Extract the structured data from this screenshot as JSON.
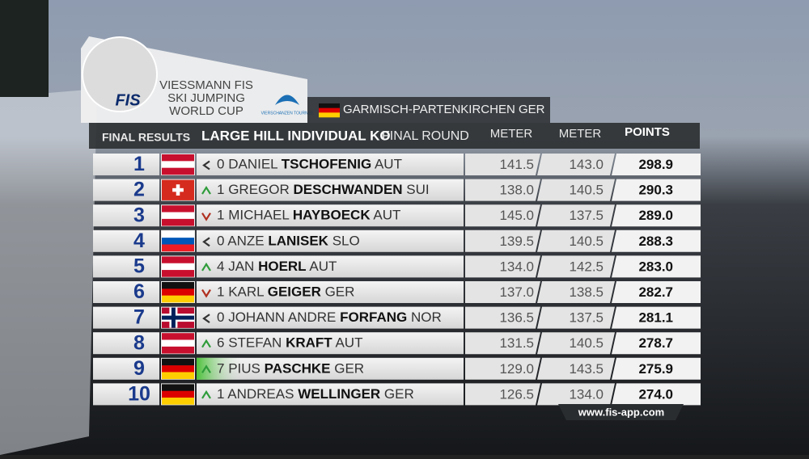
{
  "header": {
    "fis_logo": "FIS",
    "title_lines": [
      "VIESSMANN FIS",
      "SKI JUMPING",
      "WORLD CUP"
    ],
    "tour_logo": "VIERSCHANZEN TOURNEE",
    "venue": "GARMISCH-PARTENKIRCHEN",
    "venue_nation": "GER",
    "venue_flag": {
      "stripes": [
        "#111111",
        "#dd0000",
        "#ffce00"
      ],
      "cross": null
    }
  },
  "table": {
    "label": "FINAL RESULTS",
    "event": "LARGE HILL INDIVIDUAL KO",
    "round": "FINAL ROUND",
    "columns": [
      "METER",
      "METER",
      "POINTS"
    ],
    "rows": [
      {
        "rank": "1",
        "trend": "same",
        "change": "0",
        "first": "DANIEL",
        "last": "TSCHOFENIG",
        "nation": "AUT",
        "flag": {
          "stripes": [
            "#c8102e",
            "#ffffff",
            "#c8102e"
          ],
          "cross": null
        },
        "meter1": "141.5",
        "meter2": "143.0",
        "points": "298.9",
        "highlight": false
      },
      {
        "rank": "2",
        "trend": "up",
        "change": "1",
        "first": "GREGOR",
        "last": "DESCHWANDEN",
        "nation": "SUI",
        "flag": {
          "stripes": [
            "#d52b1e"
          ],
          "cross": "swiss"
        },
        "meter1": "138.0",
        "meter2": "140.5",
        "points": "290.3",
        "highlight": false
      },
      {
        "rank": "3",
        "trend": "down",
        "change": "1",
        "first": "MICHAEL",
        "last": "HAYBOECK",
        "nation": "AUT",
        "flag": {
          "stripes": [
            "#c8102e",
            "#ffffff",
            "#c8102e"
          ],
          "cross": null
        },
        "meter1": "145.0",
        "meter2": "137.5",
        "points": "289.0",
        "highlight": false
      },
      {
        "rank": "4",
        "trend": "same",
        "change": "0",
        "first": "ANZE",
        "last": "LANISEK",
        "nation": "SLO",
        "flag": {
          "stripes": [
            "#ffffff",
            "#0057b8",
            "#ed1c24"
          ],
          "cross": null
        },
        "meter1": "139.5",
        "meter2": "140.5",
        "points": "288.3",
        "highlight": false
      },
      {
        "rank": "5",
        "trend": "up",
        "change": "4",
        "first": "JAN",
        "last": "HOERL",
        "nation": "AUT",
        "flag": {
          "stripes": [
            "#c8102e",
            "#ffffff",
            "#c8102e"
          ],
          "cross": null
        },
        "meter1": "134.0",
        "meter2": "142.5",
        "points": "283.0",
        "highlight": false
      },
      {
        "rank": "6",
        "trend": "down",
        "change": "1",
        "first": "KARL",
        "last": "GEIGER",
        "nation": "GER",
        "flag": {
          "stripes": [
            "#111111",
            "#dd0000",
            "#ffce00"
          ],
          "cross": null
        },
        "meter1": "137.0",
        "meter2": "138.5",
        "points": "282.7",
        "highlight": false
      },
      {
        "rank": "7",
        "trend": "same",
        "change": "0",
        "first": "JOHANN ANDRE",
        "last": "FORFANG",
        "nation": "NOR",
        "flag": {
          "stripes": [
            "#ba0c2f"
          ],
          "cross": "nordic"
        },
        "meter1": "136.5",
        "meter2": "137.5",
        "points": "281.1",
        "highlight": false
      },
      {
        "rank": "8",
        "trend": "up",
        "change": "6",
        "first": "STEFAN",
        "last": "KRAFT",
        "nation": "AUT",
        "flag": {
          "stripes": [
            "#c8102e",
            "#ffffff",
            "#c8102e"
          ],
          "cross": null
        },
        "meter1": "131.5",
        "meter2": "140.5",
        "points": "278.7",
        "highlight": false
      },
      {
        "rank": "9",
        "trend": "up",
        "change": "7",
        "first": "PIUS",
        "last": "PASCHKE",
        "nation": "GER",
        "flag": {
          "stripes": [
            "#111111",
            "#dd0000",
            "#ffce00"
          ],
          "cross": null
        },
        "meter1": "129.0",
        "meter2": "143.5",
        "points": "275.9",
        "highlight": true
      },
      {
        "rank": "10",
        "trend": "up",
        "change": "1",
        "first": "ANDREAS",
        "last": "WELLINGER",
        "nation": "GER",
        "flag": {
          "stripes": [
            "#111111",
            "#dd0000",
            "#ffce00"
          ],
          "cross": null
        },
        "meter1": "126.5",
        "meter2": "134.0",
        "points": "274.0",
        "highlight": false
      }
    ]
  },
  "footer": {
    "url": "www.fis-app.com"
  }
}
